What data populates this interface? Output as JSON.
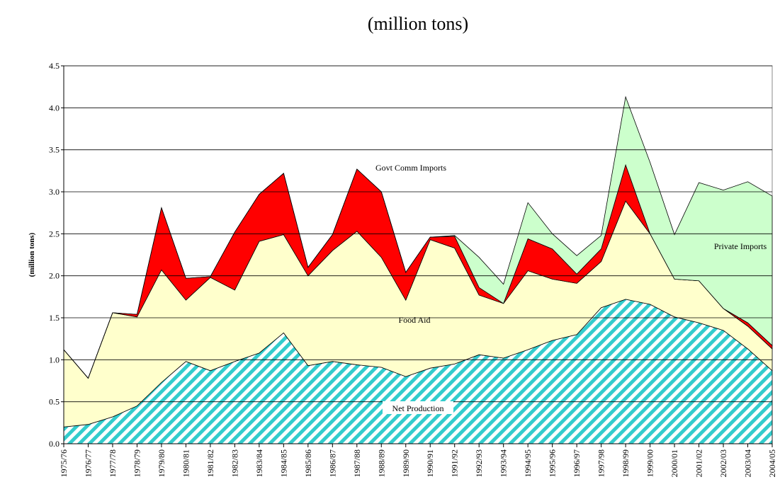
{
  "chart_data": {
    "type": "stacked-area",
    "title": "(million tons)",
    "y_label": "(million  tons)",
    "categories": [
      "1975/76",
      "1976/77",
      "1977/78",
      "1978/79",
      "1979/80",
      "1980/81",
      "1981/82",
      "1982/83",
      "1983/84",
      "1984/85",
      "1985/86",
      "1986/87",
      "1987/88",
      "1988/89",
      "1989/90",
      "1990/91",
      "1991/92",
      "1992/93",
      "1993/94",
      "1994/95",
      "1995/96",
      "1996/97",
      "1997/98",
      "1998/99",
      "1999/00",
      "2000/01",
      "2001/02",
      "2002/03",
      "2003/04",
      "2004/05"
    ],
    "series": [
      {
        "name": "Net Production",
        "color": "#33cccc",
        "pattern": "hatch",
        "values": [
          0.2,
          0.23,
          0.32,
          0.45,
          0.73,
          0.98,
          0.87,
          0.98,
          1.08,
          1.32,
          0.93,
          0.98,
          0.94,
          0.91,
          0.8,
          0.9,
          0.95,
          1.06,
          1.02,
          1.12,
          1.23,
          1.3,
          1.62,
          1.72,
          1.66,
          1.51,
          1.44,
          1.35,
          1.13,
          0.87
        ]
      },
      {
        "name": "Food Aid",
        "color": "#ffffcc",
        "values": [
          0.92,
          0.55,
          1.24,
          1.06,
          1.34,
          0.73,
          1.11,
          0.85,
          1.33,
          1.17,
          1.07,
          1.32,
          1.59,
          1.31,
          0.91,
          1.53,
          1.38,
          0.71,
          0.65,
          0.94,
          0.73,
          0.61,
          0.55,
          1.17,
          0.84,
          0.45,
          0.5,
          0.26,
          0.27,
          0.26
        ]
      },
      {
        "name": "Govt Comm Imports",
        "color": "#ff0000",
        "values": [
          0,
          0,
          0,
          0.03,
          0.74,
          0.26,
          0.01,
          0.69,
          0.56,
          0.73,
          0.1,
          0.19,
          0.74,
          0.78,
          0.33,
          0.03,
          0.14,
          0.09,
          0,
          0.38,
          0.36,
          0.11,
          0.15,
          0.43,
          0,
          0,
          0,
          0,
          0.04,
          0.04
        ]
      },
      {
        "name": "Private Imports",
        "color": "#ccffcc",
        "values": [
          0,
          0,
          0,
          0,
          0,
          0,
          0,
          0,
          0,
          0,
          0,
          0,
          0,
          0,
          0,
          0,
          0.01,
          0.36,
          0.23,
          0.43,
          0.18,
          0.22,
          0.16,
          0.81,
          0.85,
          0.53,
          1.17,
          1.41,
          1.68,
          1.78
        ]
      }
    ],
    "ylim": [
      0,
      4.5
    ],
    "yticks": [
      {
        "value": 0,
        "label": "0.0"
      },
      0.5,
      {
        "value": 1,
        "label": "1.0"
      },
      1.5,
      {
        "value": 2,
        "label": "2.0"
      },
      2.5,
      {
        "value": 3,
        "label": "3.0"
      },
      3.5,
      {
        "value": 4,
        "label": "4.0"
      },
      4.5
    ],
    "grid": true
  }
}
